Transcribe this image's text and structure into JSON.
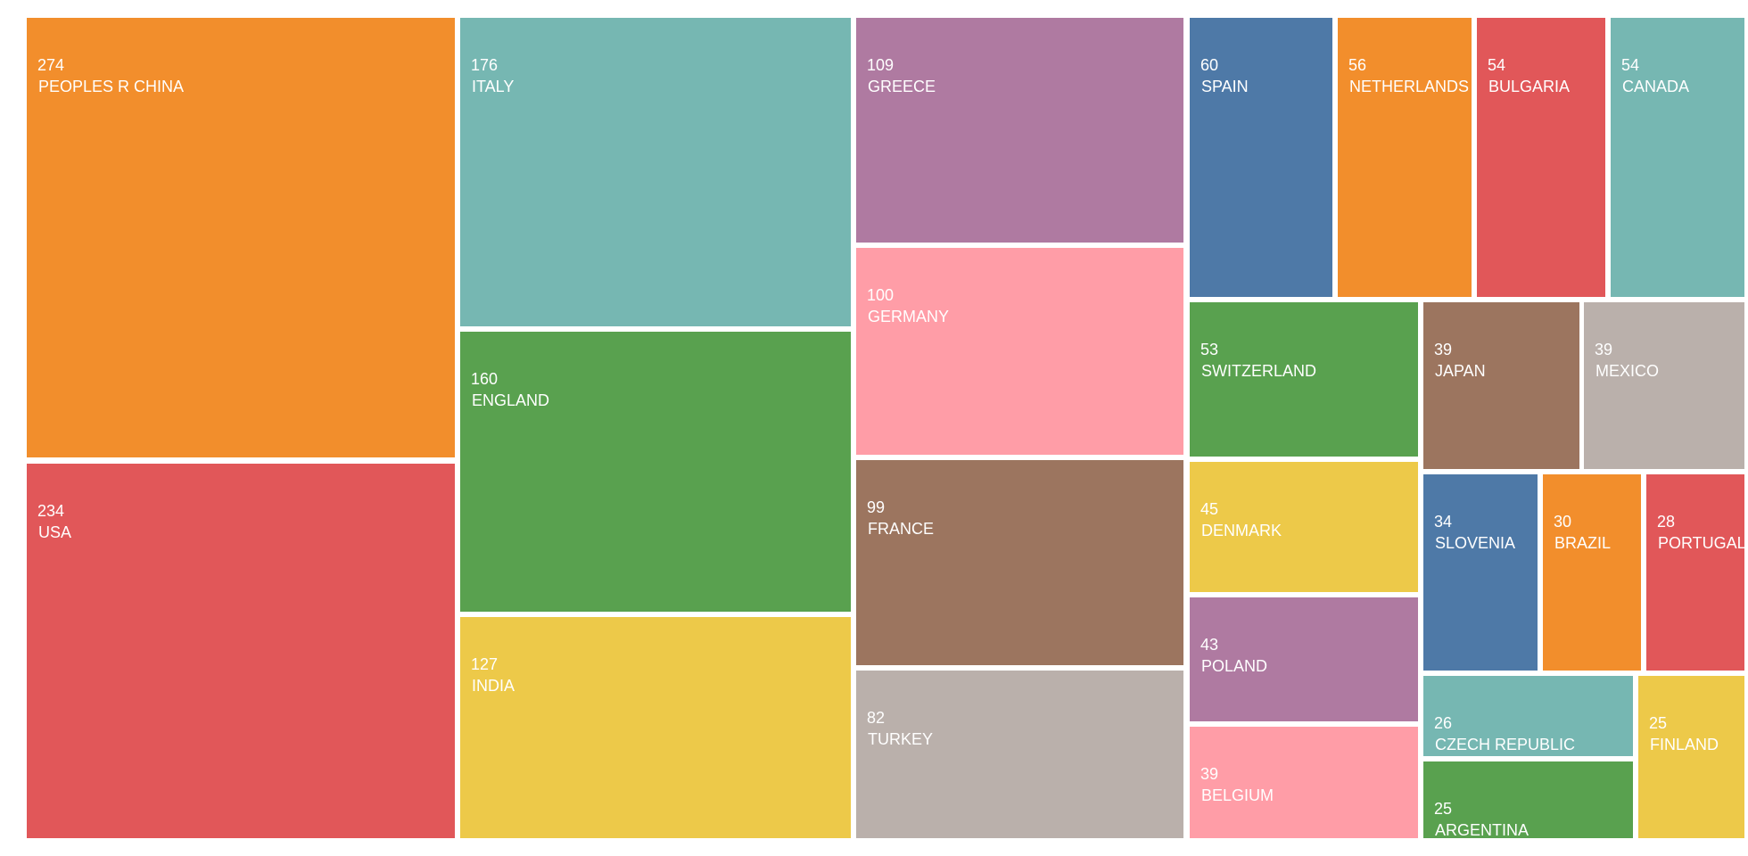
{
  "chart_data": {
    "type": "treemap",
    "colors": {
      "orange": "#F28E2C",
      "teal": "#76B7B2",
      "mauve": "#AF7AA1",
      "blue": "#4E79A7",
      "red": "#E15759",
      "green": "#59A14F",
      "yellow": "#EDC949",
      "pink": "#FF9DA7",
      "brown": "#9C755F",
      "gray": "#BAB0AB"
    },
    "items": [
      {
        "label": "PEOPLES R CHINA",
        "value": 274,
        "color": "orange"
      },
      {
        "label": "USA",
        "value": 234,
        "color": "red"
      },
      {
        "label": "ITALY",
        "value": 176,
        "color": "teal"
      },
      {
        "label": "ENGLAND",
        "value": 160,
        "color": "green"
      },
      {
        "label": "INDIA",
        "value": 127,
        "color": "yellow"
      },
      {
        "label": "GREECE",
        "value": 109,
        "color": "mauve"
      },
      {
        "label": "GERMANY",
        "value": 100,
        "color": "pink"
      },
      {
        "label": "FRANCE",
        "value": 99,
        "color": "brown"
      },
      {
        "label": "TURKEY",
        "value": 82,
        "color": "gray"
      },
      {
        "label": "SPAIN",
        "value": 60,
        "color": "blue"
      },
      {
        "label": "NETHERLANDS",
        "value": 56,
        "color": "orange"
      },
      {
        "label": "BULGARIA",
        "value": 54,
        "color": "red"
      },
      {
        "label": "CANADA",
        "value": 54,
        "color": "teal"
      },
      {
        "label": "SWITZERLAND",
        "value": 53,
        "color": "green"
      },
      {
        "label": "JAPAN",
        "value": 39,
        "color": "brown"
      },
      {
        "label": "MEXICO",
        "value": 39,
        "color": "gray"
      },
      {
        "label": "DENMARK",
        "value": 45,
        "color": "yellow"
      },
      {
        "label": "POLAND",
        "value": 43,
        "color": "mauve"
      },
      {
        "label": "BELGIUM",
        "value": 39,
        "color": "pink"
      },
      {
        "label": "SLOVENIA",
        "value": 34,
        "color": "blue"
      },
      {
        "label": "BRAZIL",
        "value": 30,
        "color": "orange"
      },
      {
        "label": "PORTUGAL",
        "value": 28,
        "color": "red"
      },
      {
        "label": "CZECH REPUBLIC",
        "value": 26,
        "color": "teal"
      },
      {
        "label": "ARGENTINA",
        "value": 25,
        "color": "green"
      },
      {
        "label": "FINLAND",
        "value": 25,
        "color": "yellow"
      }
    ]
  }
}
